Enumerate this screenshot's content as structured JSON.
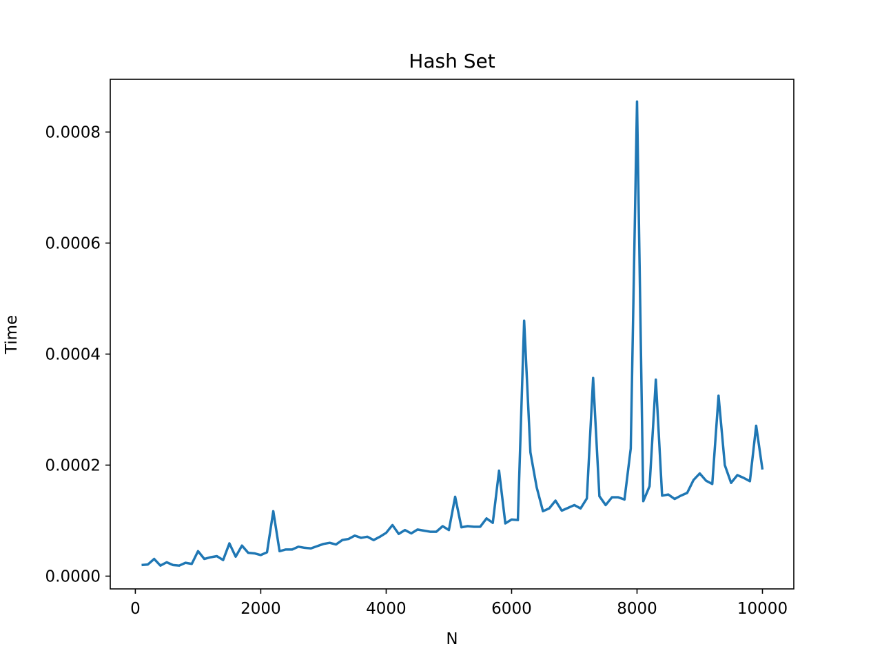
{
  "chart_data": {
    "type": "line",
    "title": "Hash Set",
    "xlabel": "N",
    "ylabel": "Time",
    "xlim": [
      -400,
      10500
    ],
    "ylim": [
      -2.3e-05,
      0.000895
    ],
    "xticks": [
      0,
      2000,
      4000,
      6000,
      8000,
      10000
    ],
    "xtick_labels": [
      "0",
      "2000",
      "4000",
      "6000",
      "8000",
      "10000"
    ],
    "yticks": [
      0,
      0.0002,
      0.0004,
      0.0006,
      0.0008
    ],
    "ytick_labels": [
      "0.0000",
      "0.0002",
      "0.0004",
      "0.0006",
      "0.0008"
    ],
    "grid": false,
    "series": [
      {
        "color": "#1f77b4",
        "x": [
          100,
          200,
          300,
          400,
          500,
          600,
          700,
          800,
          900,
          1000,
          1100,
          1200,
          1300,
          1400,
          1500,
          1600,
          1700,
          1800,
          1900,
          2000,
          2100,
          2200,
          2300,
          2400,
          2500,
          2600,
          2700,
          2800,
          2900,
          3000,
          3100,
          3200,
          3300,
          3400,
          3500,
          3600,
          3700,
          3800,
          3900,
          4000,
          4100,
          4200,
          4300,
          4400,
          4500,
          4600,
          4700,
          4800,
          4900,
          5000,
          5100,
          5200,
          5300,
          5400,
          5500,
          5600,
          5700,
          5800,
          5900,
          6000,
          6100,
          6200,
          6300,
          6400,
          6500,
          6600,
          6700,
          6800,
          6900,
          7000,
          7100,
          7200,
          7300,
          7400,
          7500,
          7600,
          7700,
          7800,
          7900,
          8000,
          8100,
          8200,
          8300,
          8400,
          8500,
          8600,
          8700,
          8800,
          8900,
          9000,
          9100,
          9200,
          9300,
          9400,
          9500,
          9600,
          9700,
          9800,
          9900,
          10000
        ],
        "y": [
          2e-05,
          2.1e-05,
          3.1e-05,
          1.9e-05,
          2.5e-05,
          2e-05,
          1.9e-05,
          2.4e-05,
          2.2e-05,
          4.5e-05,
          3.1e-05,
          3.4e-05,
          3.6e-05,
          2.9e-05,
          5.9e-05,
          3.5e-05,
          5.5e-05,
          4.2e-05,
          4.1e-05,
          3.8e-05,
          4.3e-05,
          0.000117,
          4.5e-05,
          4.8e-05,
          4.8e-05,
          5.3e-05,
          5.1e-05,
          5e-05,
          5.4e-05,
          5.8e-05,
          6e-05,
          5.7e-05,
          6.5e-05,
          6.7e-05,
          7.3e-05,
          6.9e-05,
          7.1e-05,
          6.5e-05,
          7.1e-05,
          7.8e-05,
          9.2e-05,
          7.6e-05,
          8.3e-05,
          7.7e-05,
          8.4e-05,
          8.2e-05,
          8e-05,
          8e-05,
          9e-05,
          8.3e-05,
          0.000143,
          8.8e-05,
          9e-05,
          8.9e-05,
          8.9e-05,
          0.000104,
          9.6e-05,
          0.00019,
          9.5e-05,
          0.000102,
          0.000101,
          0.00046,
          0.000223,
          0.00016,
          0.000117,
          0.000122,
          0.000136,
          0.000118,
          0.000123,
          0.000128,
          0.000122,
          0.00014,
          0.000357,
          0.000144,
          0.000128,
          0.000142,
          0.000142,
          0.000138,
          0.00023,
          0.000855,
          0.000135,
          0.000162,
          0.000354,
          0.000145,
          0.000147,
          0.000139,
          0.000145,
          0.00015,
          0.000173,
          0.000185,
          0.000172,
          0.000166,
          0.000325,
          0.0002,
          0.000168,
          0.000182,
          0.000177,
          0.000171,
          0.000271,
          0.000192
        ]
      }
    ]
  }
}
